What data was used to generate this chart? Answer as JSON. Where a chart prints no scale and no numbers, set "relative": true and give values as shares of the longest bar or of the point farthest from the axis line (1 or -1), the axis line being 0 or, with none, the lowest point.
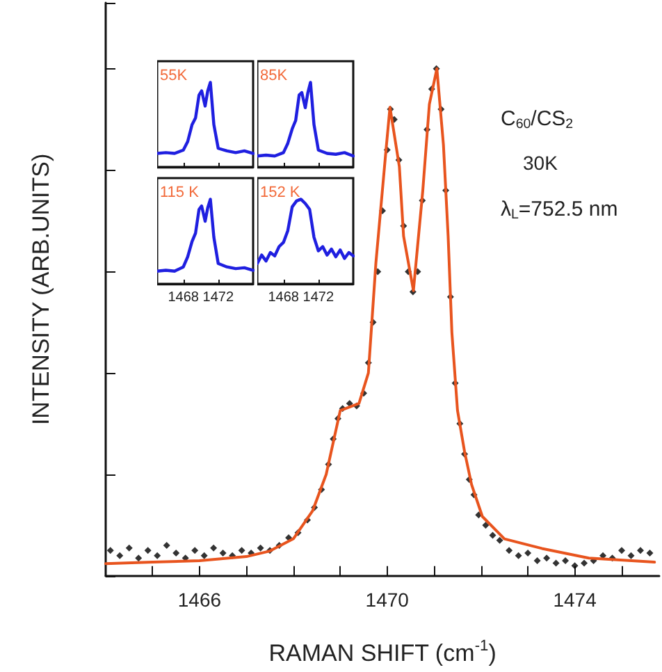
{
  "chart_data": [
    {
      "type": "scatter",
      "xlabel": "RAMAN SHIFT (cm$^{-1}$)",
      "ylabel": "INTENSITY (ARB.UNITS)",
      "relative": true,
      "grid": false,
      "xlim": [
        1464,
        1475.8
      ],
      "xticks": [
        {
          "value": 1465,
          "label": null
        },
        1466,
        {
          "value": 1467,
          "label": null
        },
        {
          "value": 1468,
          "label": null
        },
        {
          "value": 1469,
          "label": null
        },
        1470,
        {
          "value": 1471,
          "label": null
        },
        {
          "value": 1472,
          "label": null
        },
        {
          "value": 1473,
          "label": null
        },
        1474,
        {
          "value": 1475,
          "label": null
        }
      ],
      "annotations": [
        "C$_{60}$/CS$_{2}$",
        "30K",
        "λ$_{L}$=752.5 nm"
      ],
      "series": [
        {
          "color": "#000000",
          "marker": "diamond",
          "x": [
            1464.1,
            1464.3,
            1464.5,
            1464.7,
            1464.9,
            1465.1,
            1465.3,
            1465.5,
            1465.7,
            1465.9,
            1466.1,
            1466.3,
            1466.5,
            1466.7,
            1466.9,
            1467.1,
            1467.3,
            1467.5,
            1467.7,
            1467.9,
            1468.1,
            1468.3,
            1468.45,
            1468.6,
            1468.75,
            1468.85,
            1468.95,
            1469.05,
            1469.2,
            1469.35,
            1469.5,
            1469.6,
            1469.7,
            1469.8,
            1469.9,
            1470.0,
            1470.07,
            1470.15,
            1470.25,
            1470.35,
            1470.45,
            1470.55,
            1470.65,
            1470.75,
            1470.85,
            1470.95,
            1471.05,
            1471.15,
            1471.25,
            1471.35,
            1471.45,
            1471.55,
            1471.65,
            1471.75,
            1471.85,
            1471.95,
            1472.1,
            1472.25,
            1472.4,
            1472.6,
            1472.8,
            1473.0,
            1473.2,
            1473.4,
            1473.6,
            1473.8,
            1474.0,
            1474.2,
            1474.4,
            1474.6,
            1474.8,
            1475.0,
            1475.2,
            1475.4,
            1475.6
          ],
          "values": [
            0.05,
            0.04,
            0.055,
            0.035,
            0.05,
            0.04,
            0.06,
            0.045,
            0.035,
            0.05,
            0.04,
            0.055,
            0.045,
            0.04,
            0.05,
            0.045,
            0.055,
            0.05,
            0.06,
            0.075,
            0.085,
            0.11,
            0.135,
            0.17,
            0.22,
            0.27,
            0.31,
            0.33,
            0.34,
            0.335,
            0.36,
            0.42,
            0.5,
            0.6,
            0.72,
            0.84,
            0.92,
            0.9,
            0.82,
            0.69,
            0.6,
            0.56,
            0.6,
            0.74,
            0.88,
            0.96,
            1.0,
            0.92,
            0.76,
            0.55,
            0.38,
            0.3,
            0.24,
            0.19,
            0.16,
            0.12,
            0.1,
            0.08,
            0.07,
            0.05,
            0.04,
            0.045,
            0.03,
            0.035,
            0.025,
            0.03,
            0.02,
            0.025,
            0.03,
            0.04,
            0.035,
            0.05,
            0.04,
            0.05,
            0.045
          ]
        },
        {
          "type": "line",
          "color": "#e8541e",
          "marker": "none",
          "line_style": "solid",
          "x": [
            1464,
            1465,
            1466,
            1467,
            1467.5,
            1468,
            1468.41,
            1468.7,
            1469.0,
            1469.4,
            1469.6,
            1469.76,
            1469.97,
            1470.06,
            1470.26,
            1470.35,
            1470.56,
            1470.76,
            1470.9,
            1471.06,
            1471.2,
            1471.3,
            1471.38,
            1471.5,
            1471.65,
            1471.8,
            1472.03,
            1472.5,
            1473.3,
            1474.3,
            1475.7
          ],
          "values": [
            0.024,
            0.027,
            0.03,
            0.038,
            0.049,
            0.073,
            0.128,
            0.2,
            0.326,
            0.34,
            0.4,
            0.617,
            0.834,
            0.924,
            0.807,
            0.67,
            0.5625,
            0.76,
            0.93,
            1.0,
            0.85,
            0.67,
            0.48,
            0.326,
            0.245,
            0.18,
            0.117,
            0.073,
            0.054,
            0.035,
            0.027
          ]
        }
      ]
    },
    {
      "type": "line",
      "relative": true,
      "xlim": [
        1465,
        1476
      ],
      "xticks": [
        1468,
        1472
      ],
      "tick_labels": false,
      "annotations": [
        "55K"
      ],
      "series": [
        {
          "color": "#1f1fe0",
          "marker": "none",
          "x": [
            1465,
            1466,
            1467,
            1468,
            1468.5,
            1469,
            1469.4,
            1469.8,
            1470.1,
            1470.5,
            1470.8,
            1471.1,
            1471.5,
            1472,
            1473,
            1474,
            1475,
            1476
          ],
          "values": [
            0.16,
            0.17,
            0.16,
            0.2,
            0.3,
            0.5,
            0.58,
            0.85,
            0.9,
            0.72,
            0.9,
            1,
            0.5,
            0.22,
            0.19,
            0.17,
            0.19,
            0.16
          ]
        }
      ]
    },
    {
      "type": "line",
      "relative": true,
      "xlim": [
        1465,
        1476
      ],
      "xticks": [
        1468,
        1472
      ],
      "tick_labels": false,
      "annotations": [
        "85K"
      ],
      "series": [
        {
          "color": "#1f1fe0",
          "marker": "none",
          "x": [
            1465,
            1466,
            1467,
            1468,
            1468.5,
            1469,
            1469.4,
            1469.8,
            1470.1,
            1470.5,
            1470.8,
            1471.1,
            1471.5,
            1472,
            1473,
            1474,
            1475,
            1476
          ],
          "values": [
            0.13,
            0.14,
            0.13,
            0.17,
            0.28,
            0.45,
            0.55,
            0.85,
            0.88,
            0.7,
            0.88,
            1,
            0.5,
            0.2,
            0.16,
            0.15,
            0.17,
            0.13
          ]
        }
      ]
    },
    {
      "type": "line",
      "relative": true,
      "xlim": [
        1465,
        1476
      ],
      "xticks": [
        1468,
        1472
      ],
      "tick_labels": "x",
      "annotations": [
        "115 K"
      ],
      "series": [
        {
          "color": "#1f1fe0",
          "marker": "none",
          "x": [
            1465,
            1466,
            1467,
            1468,
            1468.5,
            1469,
            1469.4,
            1469.8,
            1470.1,
            1470.5,
            1470.8,
            1471.1,
            1471.5,
            1472,
            1473,
            1474,
            1475,
            1476
          ],
          "values": [
            0.15,
            0.16,
            0.15,
            0.2,
            0.32,
            0.5,
            0.6,
            0.88,
            0.92,
            0.74,
            0.9,
            1,
            0.55,
            0.24,
            0.2,
            0.18,
            0.19,
            0.16
          ]
        }
      ]
    },
    {
      "type": "line",
      "relative": true,
      "xlim": [
        1465,
        1476
      ],
      "xticks": [
        1468,
        1472
      ],
      "tick_labels": "x",
      "annotations": [
        "152 K"
      ],
      "series": [
        {
          "color": "#1f1fe0",
          "marker": "none",
          "x": [
            1465,
            1465.5,
            1466,
            1466.5,
            1467,
            1467.5,
            1468,
            1468.5,
            1469,
            1469.5,
            1470,
            1470.5,
            1471,
            1471.5,
            1472,
            1472.5,
            1473,
            1473.5,
            1474,
            1474.5,
            1475,
            1475.5,
            1476
          ],
          "values": [
            0.24,
            0.34,
            0.27,
            0.37,
            0.33,
            0.44,
            0.49,
            0.63,
            0.91,
            0.98,
            1,
            0.95,
            0.88,
            0.55,
            0.39,
            0.44,
            0.34,
            0.41,
            0.32,
            0.4,
            0.3,
            0.37,
            0.33
          ]
        }
      ]
    }
  ]
}
